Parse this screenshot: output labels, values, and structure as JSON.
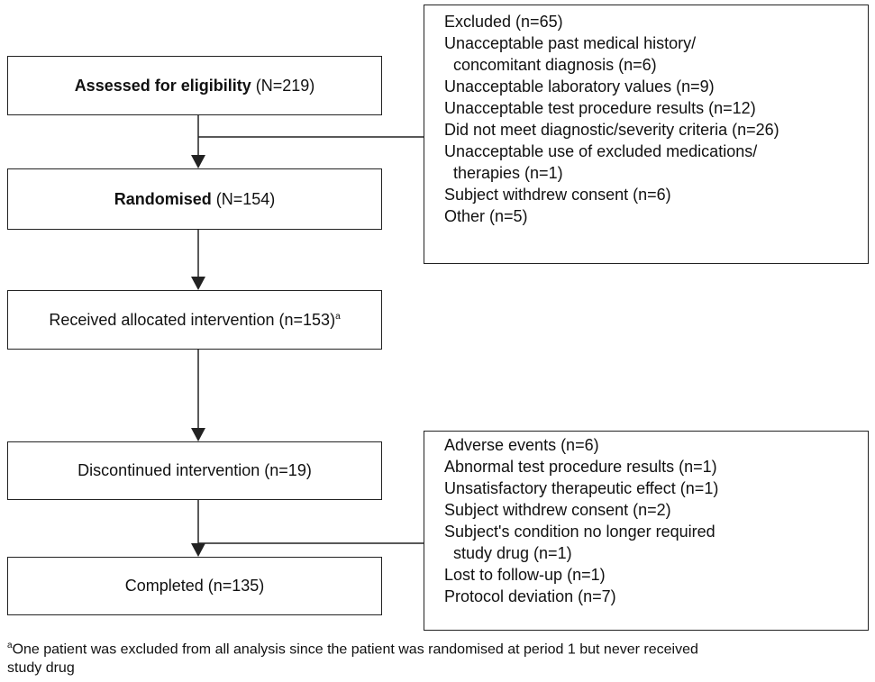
{
  "boxes": [
    {
      "label_bold": "Assessed for eligibility",
      "label": " (N=219)"
    },
    {
      "label_bold": "Randomised",
      "label": " (N=154)"
    },
    {
      "label": "Received allocated intervention (n=153)",
      "marker": "a"
    },
    {
      "label": "Discontinued intervention (n=19)"
    },
    {
      "label": "Completed (n=135)"
    }
  ],
  "excluded": {
    "items": [
      [
        "Excluded (n=65)"
      ],
      [
        "Unacceptable past medical history/",
        "concomitant diagnosis (n=6)"
      ],
      [
        "Unacceptable laboratory values (n=9)"
      ],
      [
        "Unacceptable test procedure results (n=12)"
      ],
      [
        "Did not meet diagnostic/severity criteria (n=26)"
      ],
      [
        "Unacceptable use of excluded medications/",
        "therapies (n=1)"
      ],
      [
        "Subject withdrew consent (n=6)"
      ],
      [
        "Other (n=5)"
      ]
    ]
  },
  "discontinued": {
    "items": [
      [
        "Adverse events (n=6)"
      ],
      [
        "Abnormal test procedure results (n=1)"
      ],
      [
        "Unsatisfactory therapeutic effect (n=1)"
      ],
      [
        "Subject withdrew consent (n=2)"
      ],
      [
        "Subject's condition no longer required",
        "study drug (n=1)"
      ],
      [
        "Lost to follow-up (n=1)"
      ],
      [
        "Protocol deviation (n=7)"
      ]
    ]
  },
  "footnote": {
    "marker": "a",
    "lines": [
      "One patient was excluded from all analysis since the patient was randomised at period 1 but never received",
      "study drug"
    ]
  }
}
